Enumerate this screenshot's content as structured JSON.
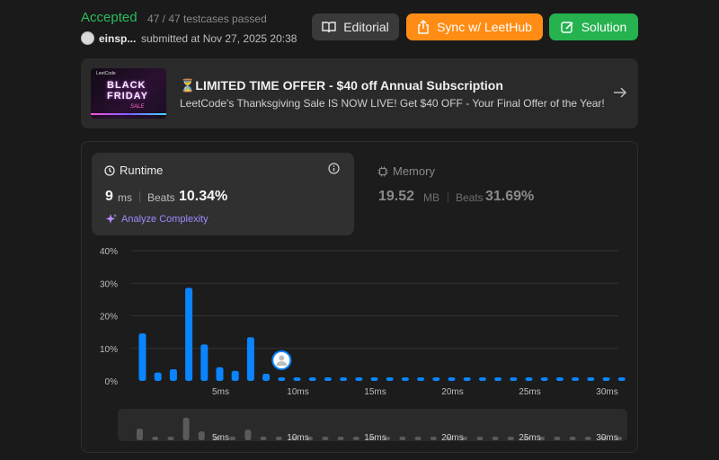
{
  "header": {
    "status": "Accepted",
    "testcases": "47 / 47 testcases passed",
    "username": "einsp...",
    "submitted": "submitted at Nov 27, 2025 20:38",
    "buttons": {
      "editorial": "Editorial",
      "sync": "Sync w/ LeetHub",
      "solution": "Solution"
    }
  },
  "banner": {
    "title": "⏳LIMITED TIME OFFER - $40 off Annual Subscription",
    "subtitle": "LeetCode's Thanksgiving Sale IS NOW LIVE! Get $40 OFF - Your Final Offer of the Year!",
    "image_text": {
      "small": "LeetCode",
      "line1": "BLACK",
      "line2": "FRIDAY",
      "line3": "SALE"
    }
  },
  "runtime": {
    "label": "Runtime",
    "value": "9",
    "unit": "ms",
    "beats_label": "Beats",
    "beats": "10.34%",
    "analyze": "Analyze Complexity"
  },
  "memory": {
    "label": "Memory",
    "value": "19.52",
    "unit": "MB",
    "beats_label": "Beats",
    "beats": "31.69%"
  },
  "colors": {
    "accepted": "#2cbb5d",
    "sync": "#ff8c14",
    "solution": "#25b24f",
    "bar": "#0a84ff",
    "mini_bar": "#5a5a5a"
  },
  "chart_data": {
    "type": "bar",
    "title": "",
    "xlabel": "",
    "ylabel": "",
    "ylim": [
      0,
      40
    ],
    "y_ticks": [
      "0%",
      "10%",
      "20%",
      "30%",
      "40%"
    ],
    "x_ticks": [
      {
        "x": 5,
        "label": "5ms"
      },
      {
        "x": 10,
        "label": "10ms"
      },
      {
        "x": 15,
        "label": "15ms"
      },
      {
        "x": 20,
        "label": "20ms"
      },
      {
        "x": 25,
        "label": "25ms"
      },
      {
        "x": 30,
        "label": "30ms"
      }
    ],
    "grid": true,
    "marker_x": 9,
    "x": [
      0,
      1,
      2,
      3,
      4,
      5,
      6,
      7,
      8,
      9,
      10,
      11,
      12,
      13,
      14,
      15,
      16,
      17,
      18,
      19,
      20,
      21,
      22,
      23,
      24,
      25,
      26,
      27,
      28,
      29,
      30,
      31
    ],
    "values": [
      14.6,
      2.6,
      3.6,
      28.6,
      11.2,
      4.2,
      3.1,
      13.4,
      2.2,
      0.6,
      0.5,
      0.5,
      0.5,
      0.5,
      0.5,
      0.5,
      0.5,
      0.5,
      0.5,
      0.5,
      0.5,
      0.5,
      0.5,
      0.5,
      0.5,
      0.5,
      0.5,
      0.5,
      0.5,
      0.5,
      0.5,
      0.5
    ]
  }
}
